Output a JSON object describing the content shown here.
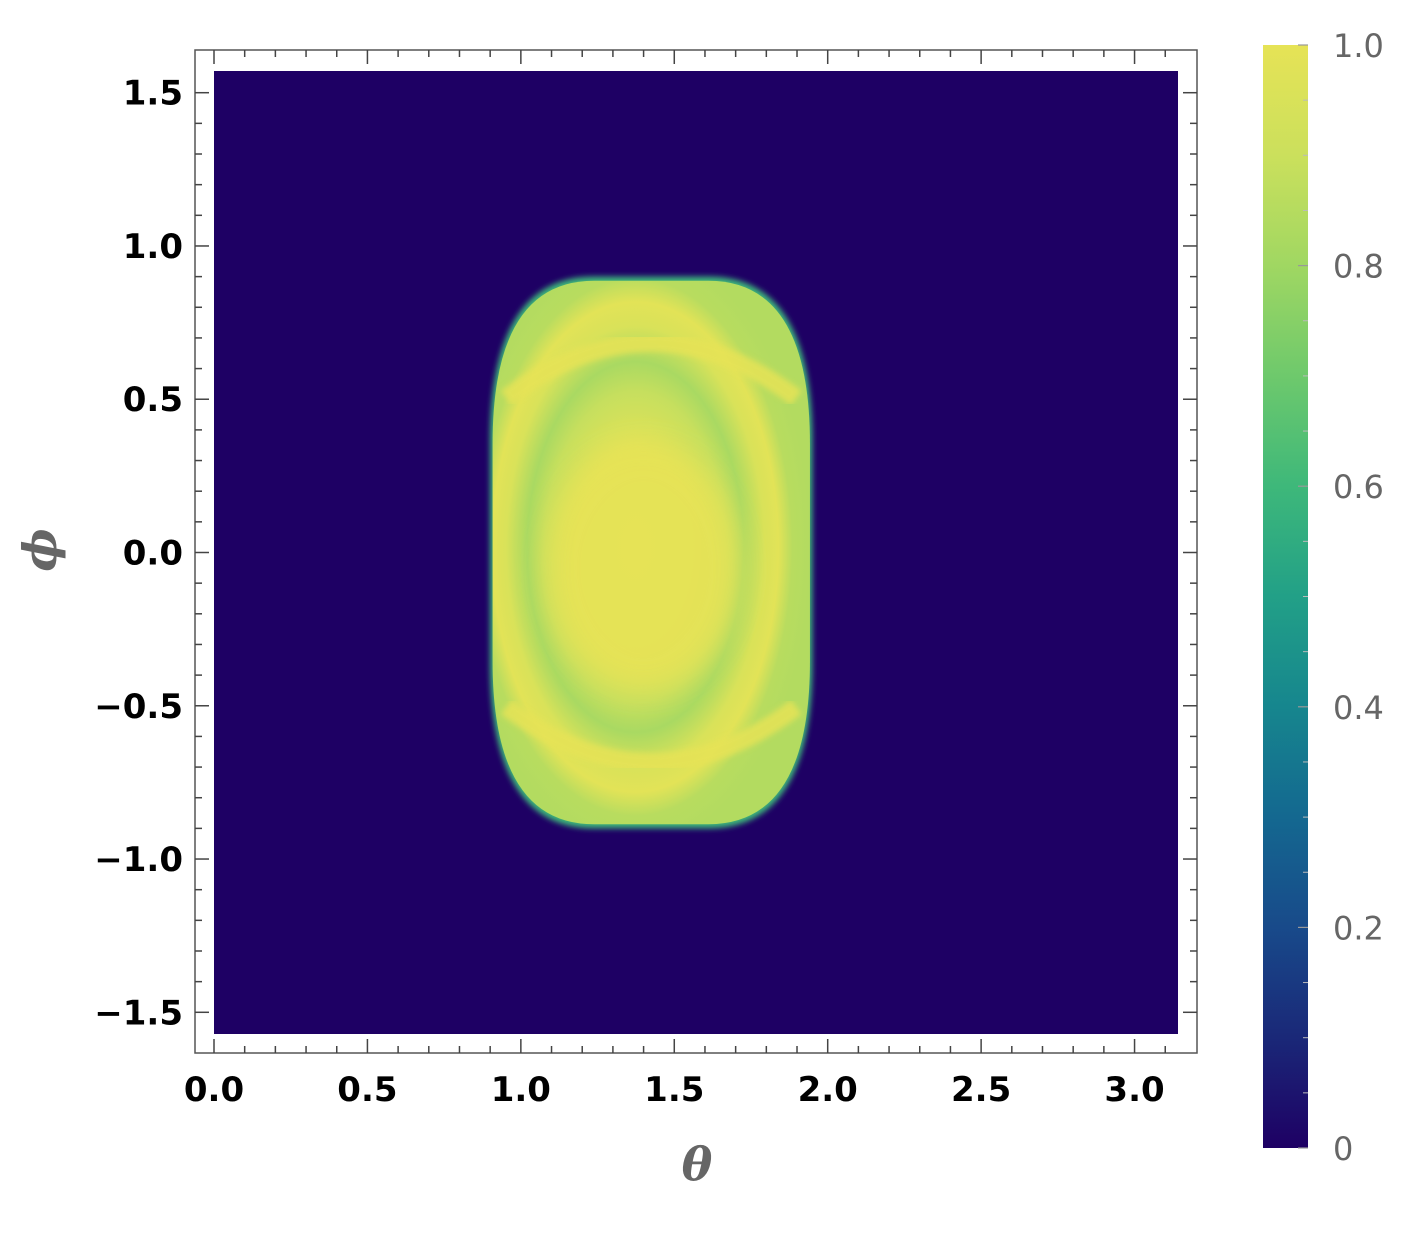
{
  "chart_data": {
    "type": "heatmap",
    "title": "",
    "xlabel": "θ",
    "ylabel": "ϕ",
    "xlim": [
      0,
      3.1416
    ],
    "ylim": [
      -1.5708,
      1.5708
    ],
    "x_ticks": [
      "0.0",
      "0.5",
      "1.0",
      "1.5",
      "2.0",
      "2.5",
      "3.0"
    ],
    "x_tick_values": [
      0,
      0.5,
      1.0,
      1.5,
      2.0,
      2.5,
      3.0
    ],
    "y_ticks": [
      "1.5",
      "1.0",
      "0.5",
      "0.0",
      "−0.5",
      "−1.0",
      "−1.5"
    ],
    "y_tick_values": [
      1.5,
      1.0,
      0.5,
      0.0,
      -0.5,
      -1.0,
      -1.5
    ],
    "colorbar": {
      "range": [
        0,
        1
      ],
      "ticks": [
        "1.0",
        "0.8",
        "0.6",
        "0.4",
        "0.2",
        "0"
      ],
      "tick_values": [
        1.0,
        0.8,
        0.6,
        0.4,
        0.2,
        0
      ],
      "colormap": "viridis",
      "low_color": "#1e0064",
      "high_color": "#e6e356"
    },
    "region": {
      "description_values": {
        "theta_min": 0.9,
        "theta_max": 1.95,
        "phi_min": -0.9,
        "phi_max": 0.9,
        "center_theta": 1.4,
        "center_phi": -0.05,
        "peak_value": 1.0,
        "ring_value": 0.82,
        "outside_value": 0.0
      }
    }
  }
}
